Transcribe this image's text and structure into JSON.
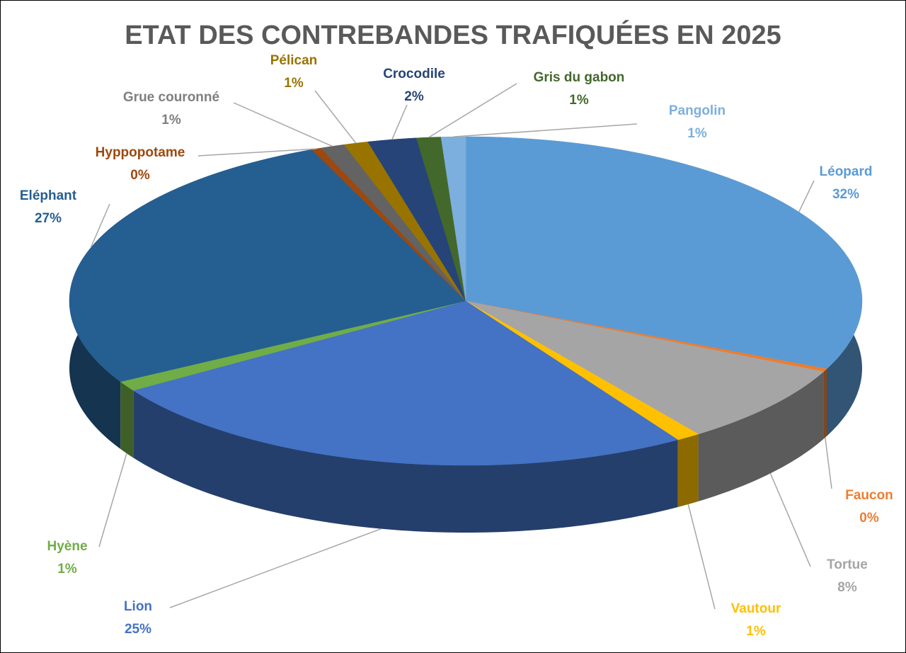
{
  "chart_data": {
    "type": "pie",
    "title": "ETAT DES CONTREBANDES TRAFIQUÉES EN 2025",
    "categories": [
      "Léopard",
      "Faucon",
      "Tortue",
      "Vautour",
      "Lion",
      "Hyène",
      "Eléphant",
      "Hyppopotame",
      "Grue couronné",
      "Pélican",
      "Crocodile",
      "Gris du gabon",
      "Pangolin"
    ],
    "values": [
      32,
      0.3,
      8,
      1,
      25,
      1,
      27,
      0.4,
      1,
      1,
      2,
      1,
      1
    ],
    "value_labels": [
      "32%",
      "0%",
      "8%",
      "1%",
      "25%",
      "1%",
      "27%",
      "0%",
      "1%",
      "1%",
      "2%",
      "1%",
      "1%"
    ],
    "colors": [
      "#5b9bd5",
      "#ed7d31",
      "#a5a5a5",
      "#ffc000",
      "#4472c4",
      "#70ad47",
      "#255e91",
      "#9e480e",
      "#636363",
      "#997300",
      "#264478",
      "#43682b",
      "#7cafdd"
    ]
  }
}
